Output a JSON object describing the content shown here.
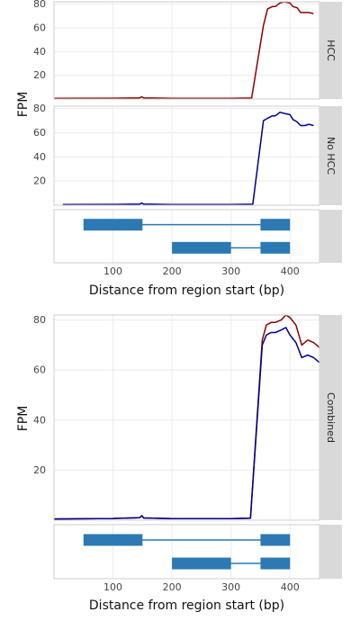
{
  "chart_data": {
    "type": "line",
    "xlabel": "Distance from region start (bp)",
    "ylabel": "FPM",
    "xlim": [
      0,
      450
    ],
    "x_ticks": [
      100,
      200,
      300,
      400
    ],
    "grid": true,
    "colors": {
      "HCC": "#8b0000",
      "No HCC": "#00008b",
      "transcript": "#2c79b3"
    },
    "figures": [
      {
        "panels": [
          {
            "facet": "HCC",
            "ylim": [
              0,
              82
            ],
            "y_ticks": [
              20,
              40,
              60,
              80
            ],
            "series": [
              {
                "group": "HCC",
                "points": [
                  [
                    0,
                    0.5
                  ],
                  [
                    100,
                    0.7
                  ],
                  [
                    145,
                    1
                  ],
                  [
                    149,
                    1.8
                  ],
                  [
                    152,
                    0.9
                  ],
                  [
                    200,
                    0.6
                  ],
                  [
                    300,
                    0.6
                  ],
                  [
                    335,
                    0.8
                  ],
                  [
                    355,
                    62
                  ],
                  [
                    362,
                    76
                  ],
                  [
                    370,
                    78
                  ],
                  [
                    375,
                    78
                  ],
                  [
                    383,
                    81
                  ],
                  [
                    390,
                    82
                  ],
                  [
                    400,
                    81
                  ],
                  [
                    405,
                    78
                  ],
                  [
                    412,
                    77
                  ],
                  [
                    418,
                    73
                  ],
                  [
                    425,
                    73
                  ],
                  [
                    432,
                    73
                  ],
                  [
                    440,
                    72
                  ]
                ]
              }
            ]
          },
          {
            "facet": "No HCC",
            "ylim": [
              0,
              82
            ],
            "y_ticks": [
              20,
              40,
              60,
              80
            ],
            "series": [
              {
                "group": "No HCC",
                "points": [
                  [
                    15,
                    0.5
                  ],
                  [
                    100,
                    0.7
                  ],
                  [
                    145,
                    1
                  ],
                  [
                    149,
                    1.8
                  ],
                  [
                    152,
                    0.9
                  ],
                  [
                    200,
                    0.6
                  ],
                  [
                    300,
                    0.6
                  ],
                  [
                    337,
                    0.8
                  ],
                  [
                    355,
                    70
                  ],
                  [
                    362,
                    72
                  ],
                  [
                    370,
                    74
                  ],
                  [
                    375,
                    74
                  ],
                  [
                    383,
                    77
                  ],
                  [
                    390,
                    76
                  ],
                  [
                    400,
                    75
                  ],
                  [
                    405,
                    71
                  ],
                  [
                    412,
                    69
                  ],
                  [
                    418,
                    66
                  ],
                  [
                    425,
                    66
                  ],
                  [
                    432,
                    67
                  ],
                  [
                    440,
                    66
                  ]
                ]
              }
            ]
          }
        ]
      },
      {
        "panels": [
          {
            "facet": "Combined",
            "ylim": [
              0,
              82
            ],
            "y_ticks": [
              20,
              40,
              60,
              80
            ],
            "series": [
              {
                "group": "HCC",
                "points": [
                  [
                    0,
                    0.5
                  ],
                  [
                    100,
                    0.7
                  ],
                  [
                    145,
                    1
                  ],
                  [
                    149,
                    1.8
                  ],
                  [
                    152,
                    0.9
                  ],
                  [
                    200,
                    0.6
                  ],
                  [
                    300,
                    0.6
                  ],
                  [
                    333,
                    0.8
                  ],
                  [
                    353,
                    72
                  ],
                  [
                    360,
                    78
                  ],
                  [
                    368,
                    79
                  ],
                  [
                    375,
                    79
                  ],
                  [
                    385,
                    80
                  ],
                  [
                    393,
                    82
                  ],
                  [
                    400,
                    81
                  ],
                  [
                    410,
                    78
                  ],
                  [
                    420,
                    70
                  ],
                  [
                    430,
                    72
                  ],
                  [
                    440,
                    71
                  ],
                  [
                    450,
                    69
                  ]
                ]
              },
              {
                "group": "No HCC",
                "points": [
                  [
                    0,
                    0.5
                  ],
                  [
                    100,
                    0.7
                  ],
                  [
                    145,
                    1
                  ],
                  [
                    149,
                    1.8
                  ],
                  [
                    152,
                    0.9
                  ],
                  [
                    200,
                    0.6
                  ],
                  [
                    300,
                    0.6
                  ],
                  [
                    333,
                    0.8
                  ],
                  [
                    353,
                    70
                  ],
                  [
                    360,
                    74
                  ],
                  [
                    368,
                    75
                  ],
                  [
                    375,
                    75
                  ],
                  [
                    385,
                    76
                  ],
                  [
                    393,
                    77
                  ],
                  [
                    400,
                    74
                  ],
                  [
                    410,
                    71
                  ],
                  [
                    420,
                    65
                  ],
                  [
                    430,
                    66
                  ],
                  [
                    440,
                    65
                  ],
                  [
                    450,
                    63
                  ]
                ]
              }
            ]
          }
        ]
      }
    ],
    "transcripts": [
      {
        "exons": [
          [
            50,
            150
          ],
          [
            350,
            400
          ]
        ]
      },
      {
        "exons": [
          [
            200,
            300
          ],
          [
            350,
            400
          ]
        ]
      }
    ]
  }
}
